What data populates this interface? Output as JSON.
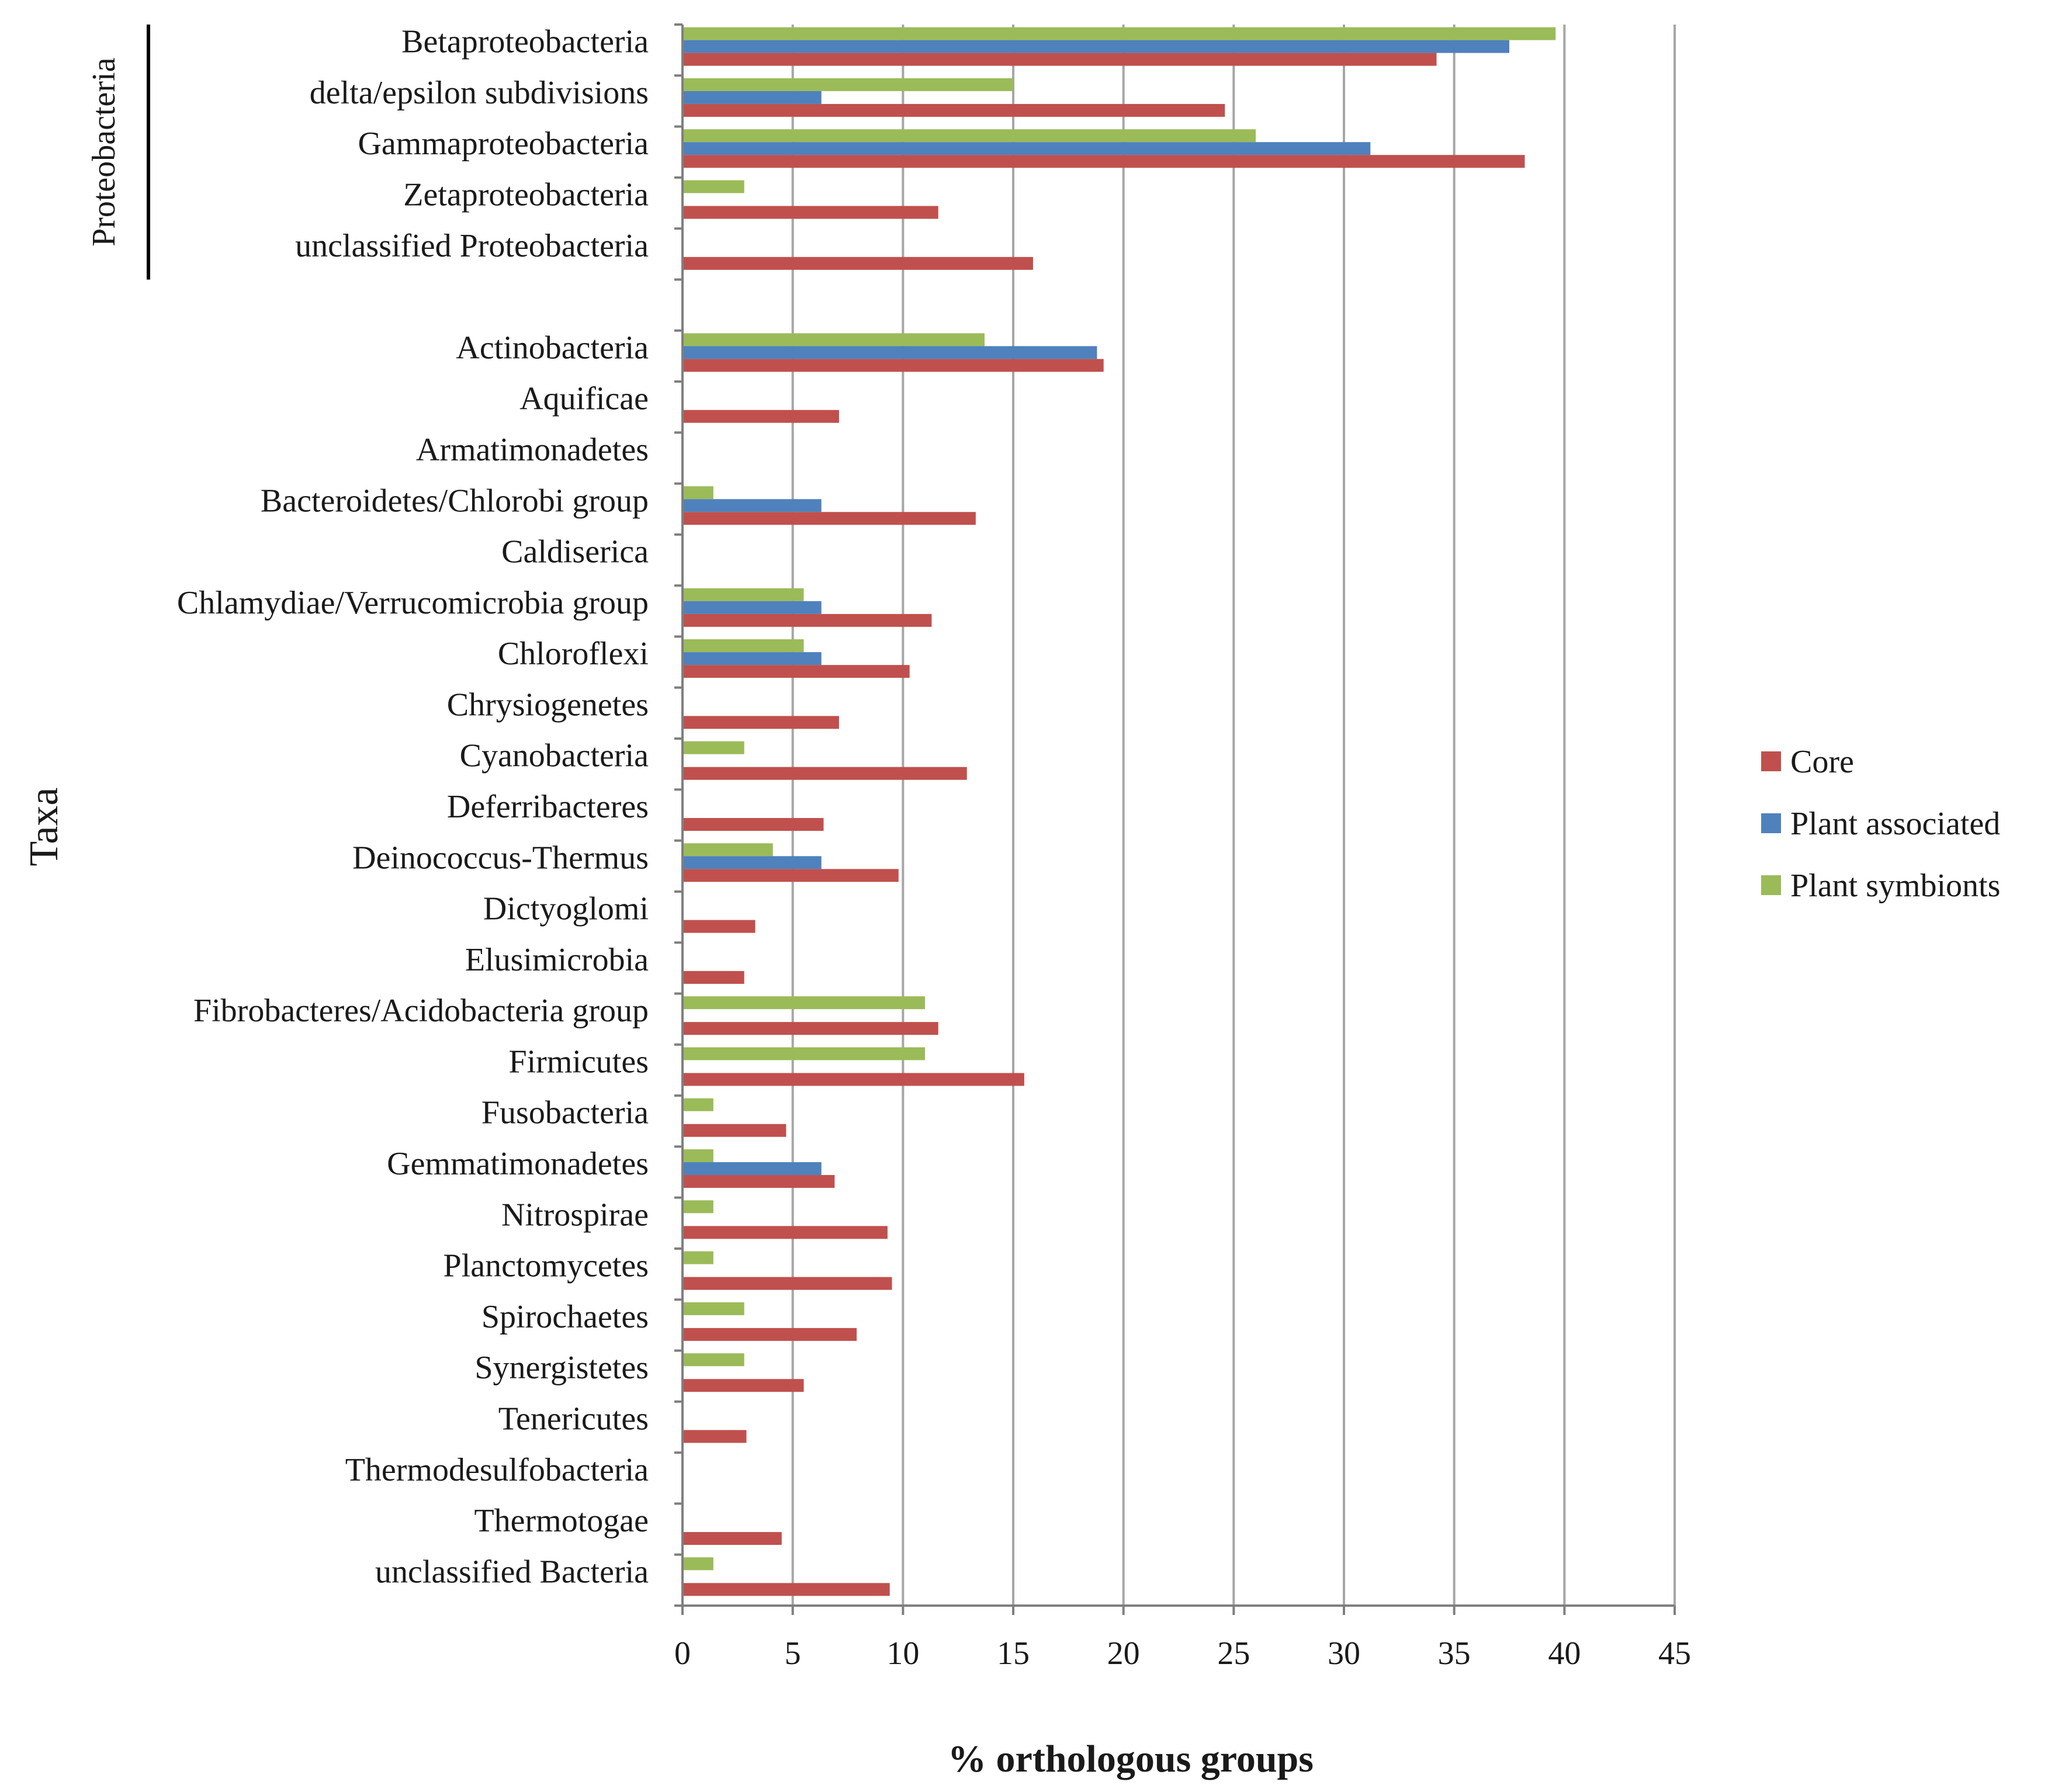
{
  "chart_data": {
    "type": "bar",
    "orientation": "horizontal",
    "title": "",
    "xlabel": "% orthologous groups",
    "ylabel": "Taxa",
    "xlim": [
      0,
      45
    ],
    "xticks": [
      0,
      5,
      10,
      15,
      20,
      25,
      30,
      35,
      40,
      45
    ],
    "grid": "vertical major gridlines",
    "legend_position": "right",
    "categories": [
      "Betaproteobacteria",
      "delta/epsilon subdivisions",
      "Gammaproteobacteria",
      "Zetaproteobacteria",
      "unclassified Proteobacteria",
      "",
      "Actinobacteria",
      "Aquificae",
      "Armatimonadetes",
      "Bacteroidetes/Chlorobi group",
      "Caldiserica",
      "Chlamydiae/Verrucomicrobia group",
      "Chloroflexi",
      "Chrysiogenetes",
      "Cyanobacteria",
      "Deferribacteres",
      "Deinococcus-Thermus",
      "Dictyoglomi",
      "Elusimicrobia",
      "Fibrobacteres/Acidobacteria group",
      "Firmicutes",
      "Fusobacteria",
      "Gemmatimonadetes",
      "Nitrospirae",
      "Planctomycetes",
      "Spirochaetes",
      "Synergistetes",
      "Tenericutes",
      "Thermodesulfobacteria",
      "Thermotogae",
      "unclassified Bacteria"
    ],
    "series": [
      {
        "name": "Core",
        "color": "#c0504d",
        "values": [
          34.2,
          24.6,
          38.2,
          11.6,
          15.9,
          null,
          19.1,
          7.1,
          0,
          13.3,
          0,
          11.3,
          10.3,
          7.1,
          12.9,
          6.4,
          9.8,
          3.3,
          2.8,
          11.6,
          15.5,
          4.7,
          6.9,
          9.3,
          9.5,
          7.9,
          5.5,
          2.9,
          0,
          4.5,
          9.4
        ]
      },
      {
        "name": "Plant associated",
        "color": "#4f81bd",
        "values": [
          37.5,
          6.3,
          31.2,
          0,
          0,
          null,
          18.8,
          0,
          0,
          6.3,
          0,
          6.3,
          6.3,
          0,
          0,
          0,
          6.3,
          0,
          0,
          0,
          0,
          0,
          6.3,
          0,
          0,
          0,
          0,
          0,
          0,
          0,
          0
        ]
      },
      {
        "name": "Plant symbionts",
        "color": "#9bbb59",
        "values": [
          39.6,
          15.0,
          26.0,
          2.8,
          0,
          null,
          13.7,
          0,
          0,
          1.4,
          0,
          5.5,
          5.5,
          0,
          2.8,
          0,
          4.1,
          0,
          0,
          11.0,
          11.0,
          1.4,
          1.4,
          1.4,
          1.4,
          2.8,
          2.8,
          0,
          0,
          0,
          1.4
        ]
      }
    ],
    "annotations": [
      {
        "text": "Proteobacteria",
        "spans_categories": [
          "Betaproteobacteria",
          "unclassified Proteobacteria"
        ]
      }
    ]
  }
}
